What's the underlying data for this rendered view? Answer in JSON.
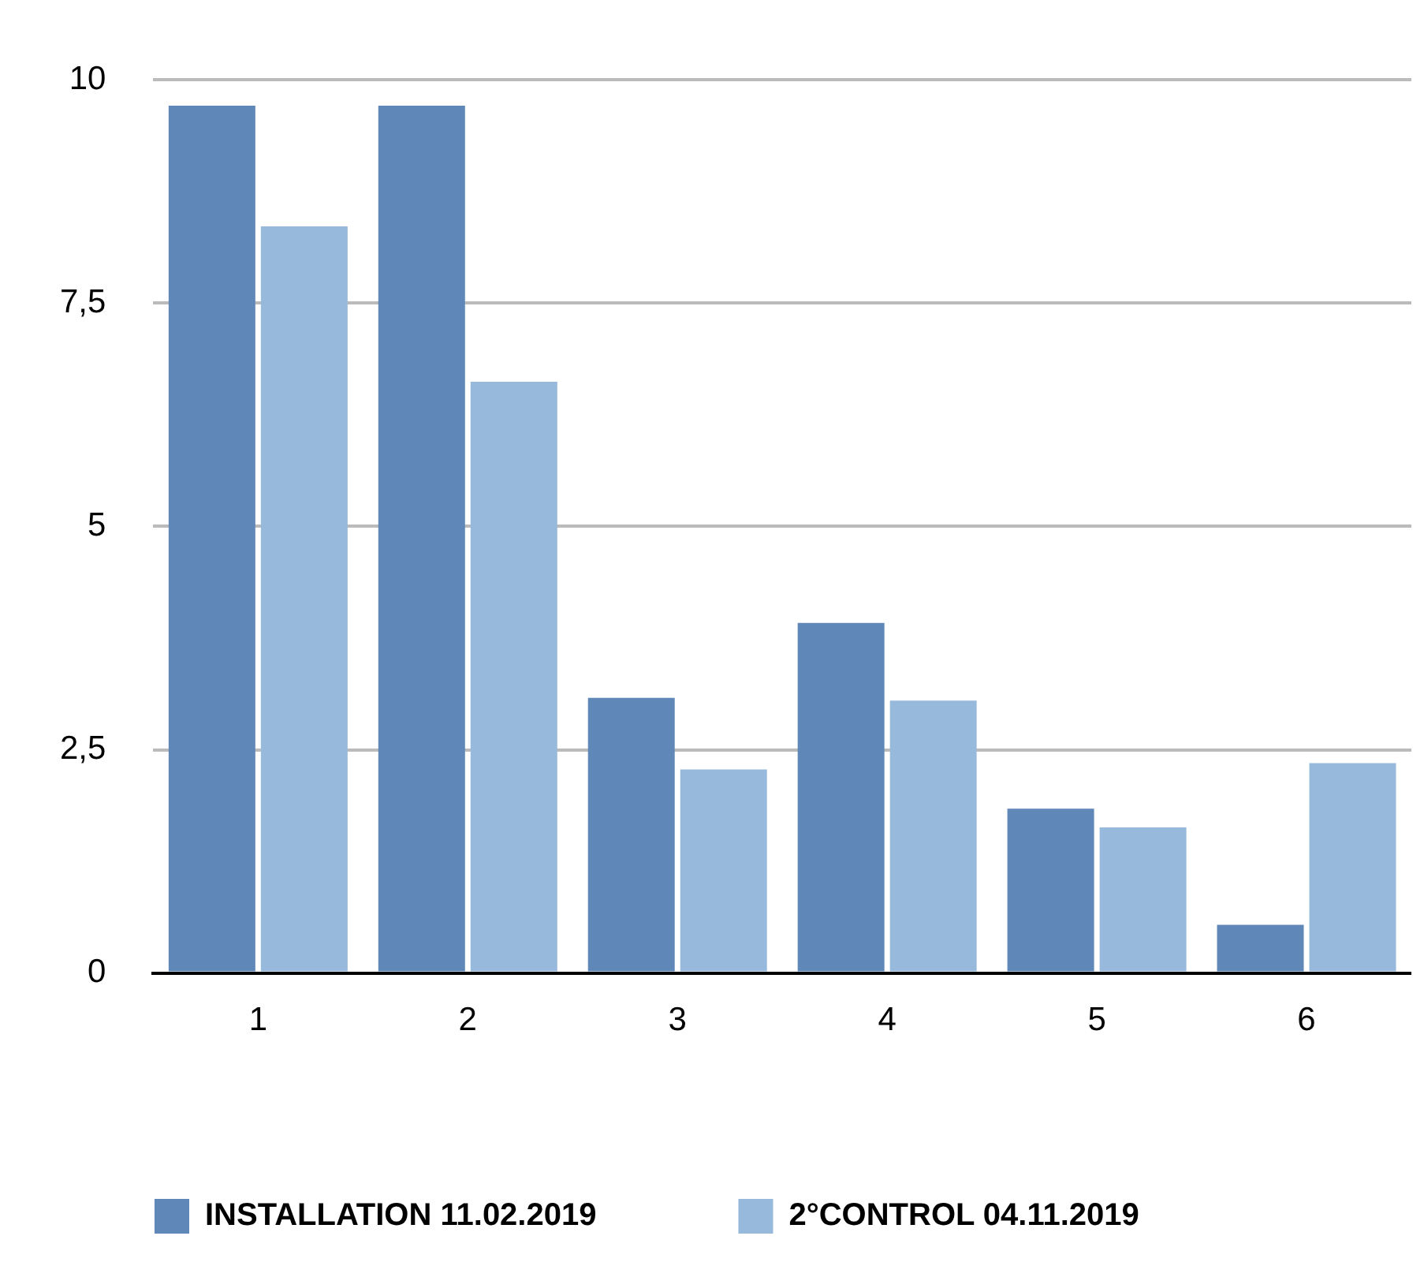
{
  "chart_data": {
    "type": "bar",
    "categories": [
      "1",
      "2",
      "3",
      "4",
      "5",
      "6"
    ],
    "series": [
      {
        "name": "INSTALLATION 11.02.2019",
        "color": "#5f87b8",
        "values": [
          9.71,
          9.71,
          3.08,
          3.92,
          1.84,
          0.54
        ]
      },
      {
        "name": "2°CONTROL 04.11.2019",
        "color": "#97b9db",
        "values": [
          8.36,
          6.62,
          2.28,
          3.05,
          1.63,
          2.35
        ]
      }
    ],
    "ylim": [
      0,
      10
    ],
    "yticks": [
      0,
      {
        "value": 2.5,
        "label": "2,5"
      },
      5,
      {
        "value": 7.5,
        "label": "7,5"
      },
      10
    ],
    "grid": "y",
    "legend": "bottom left"
  }
}
